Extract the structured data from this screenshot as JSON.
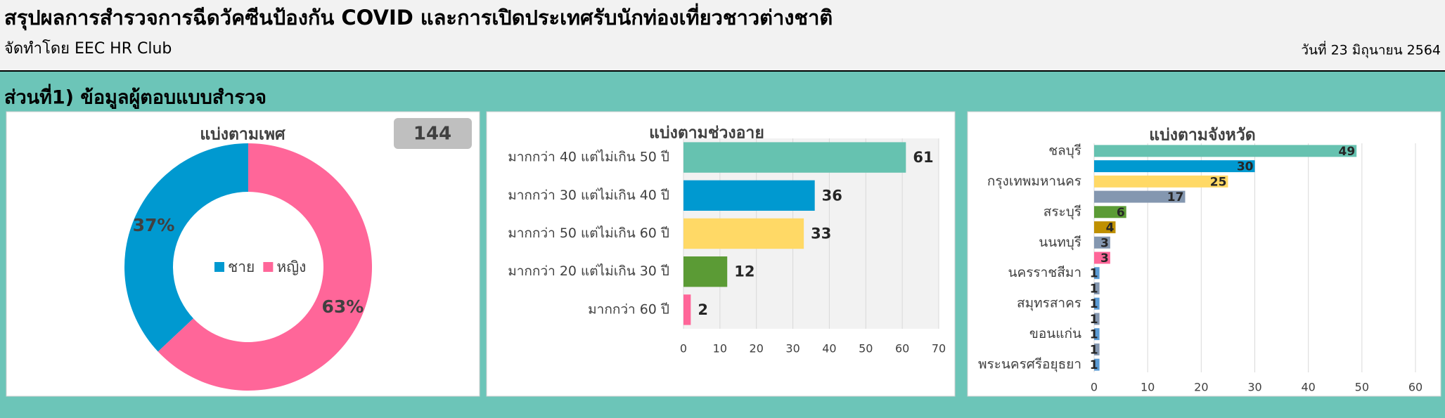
{
  "header": {
    "title": "สรุปผลการสำรวจการฉีดวัคซีนป้องกัน COVID และการเปิดประเทศรับนักท่องเที่ยวชาวต่างชาติ",
    "subtitle": "จัดทำโดย EEC HR Club",
    "date": "วันที่ 23 มิถุนายน 2564",
    "section": "ส่วนที่1) ข้อมูลผู้ตอบแบบสำรวจ"
  },
  "chart_data": [
    {
      "type": "donut",
      "title": "แบ่งตามเพศ",
      "total": 144,
      "categories": [
        "ชาย",
        "หญิง"
      ],
      "values": [
        37,
        63
      ],
      "value_labels": [
        "37%",
        "63%"
      ],
      "colors": [
        "#0099d0",
        "#ff6699"
      ],
      "legend": "center"
    },
    {
      "type": "hbar",
      "title": "แบ่งตามช่วงอายุ",
      "categories": [
        "มากกว่า 40 แต่ไม่เกิน 50 ปี",
        "มากกว่า 30 แต่ไม่เกิน 40 ปี",
        "มากกว่า 50 แต่ไม่เกิน 60 ปี",
        "มากกว่า 20 แต่ไม่เกิน 30 ปี",
        "มากกว่า 60 ปี"
      ],
      "values": [
        61,
        36,
        33,
        12,
        2
      ],
      "colors": [
        "#66c2b0",
        "#0099d0",
        "#ffd966",
        "#5b9b35",
        "#ff6699"
      ],
      "xlim": [
        0,
        70
      ],
      "xticks": [
        0,
        10,
        20,
        30,
        40,
        50,
        60,
        70
      ],
      "grid": true,
      "plot_color": "#f2f2f2"
    },
    {
      "type": "hbar",
      "title": "แบ่งตามจังหวัด",
      "categories": [
        "ชลบุรี",
        null,
        "กรุงเทพมหานคร",
        null,
        "สระบุรี",
        null,
        "นนทบุรี",
        null,
        "นครราชสีมา",
        null,
        "สมุทรสาคร",
        null,
        "ขอนแก่น",
        null,
        "พระนครศรีอยุธยา"
      ],
      "values": [
        49,
        30,
        25,
        17,
        6,
        4,
        3,
        3,
        1,
        1,
        1,
        1,
        1,
        1,
        1
      ],
      "colors": [
        "#66c2b0",
        "#0099d0",
        "#ffd966",
        "#8497b0",
        "#5b9b35",
        "#bf9000",
        "#8497b0",
        "#ff6699",
        "#5b9bd5",
        "#8497b0",
        "#5b9bd5",
        "#8497b0",
        "#5b9bd5",
        "#8497b0",
        "#5b9bd5"
      ],
      "xlim": [
        0,
        60
      ],
      "xticks": [
        0,
        10,
        20,
        30,
        40,
        50,
        60
      ],
      "grid": true,
      "plot_color": "#ffffff"
    }
  ]
}
